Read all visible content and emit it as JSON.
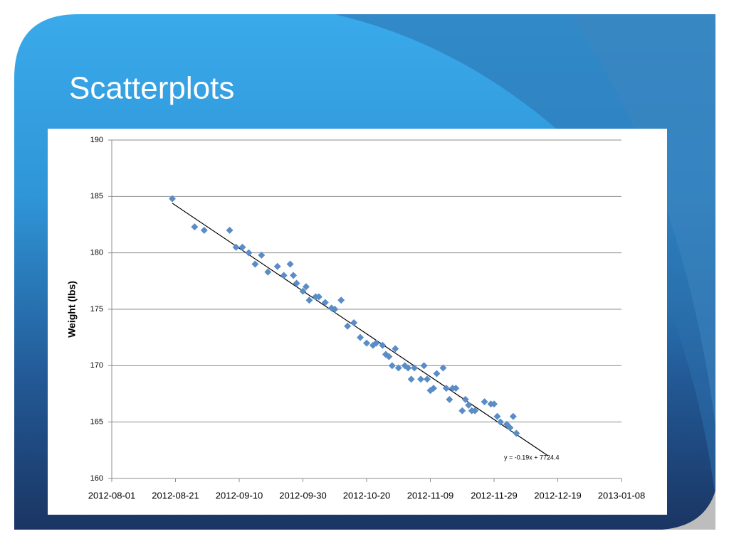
{
  "slide_title": "Scatterplots",
  "chart_data": {
    "type": "scatter",
    "y_label": "Weight (lbs)",
    "annotation": "y = -0.19x + 7724.4",
    "color": "#5a8cc6",
    "x": [
      "2012-08-20",
      "2012-08-27",
      "2012-08-30",
      "2012-09-07",
      "2012-09-09",
      "2012-09-11",
      "2012-09-13",
      "2012-09-15",
      "2012-09-17",
      "2012-09-19",
      "2012-09-22",
      "2012-09-24",
      "2012-09-26",
      "2012-09-27",
      "2012-09-28",
      "2012-09-30",
      "2012-10-01",
      "2012-10-02",
      "2012-10-04",
      "2012-10-05",
      "2012-10-07",
      "2012-10-09",
      "2012-10-10",
      "2012-10-12",
      "2012-10-14",
      "2012-10-16",
      "2012-10-18",
      "2012-10-20",
      "2012-10-22",
      "2012-10-23",
      "2012-10-25",
      "2012-10-26",
      "2012-10-27",
      "2012-10-28",
      "2012-10-29",
      "2012-10-30",
      "2012-11-01",
      "2012-11-02",
      "2012-11-03",
      "2012-11-04",
      "2012-11-06",
      "2012-11-07",
      "2012-11-08",
      "2012-11-09",
      "2012-11-10",
      "2012-11-11",
      "2012-11-13",
      "2012-11-14",
      "2012-11-15",
      "2012-11-16",
      "2012-11-17",
      "2012-11-19",
      "2012-11-20",
      "2012-11-21",
      "2012-11-22",
      "2012-11-23",
      "2012-11-26",
      "2012-11-28",
      "2012-11-29",
      "2012-11-30",
      "2012-12-01",
      "2012-12-03",
      "2012-12-04",
      "2012-12-05",
      "2012-12-06"
    ],
    "values": [
      184.8,
      182.3,
      182.0,
      182.0,
      180.5,
      180.5,
      180.0,
      179.0,
      179.8,
      178.3,
      178.8,
      178.0,
      179.0,
      178.0,
      177.3,
      176.6,
      177.0,
      175.8,
      176.1,
      176.1,
      175.6,
      175.1,
      175.0,
      175.8,
      173.5,
      173.8,
      172.5,
      172.0,
      171.8,
      172.0,
      171.8,
      171.0,
      170.8,
      170.0,
      171.5,
      169.8,
      170.0,
      169.8,
      168.8,
      169.8,
      168.8,
      170.0,
      168.8,
      167.8,
      168.0,
      169.3,
      169.8,
      168.0,
      167.0,
      168.0,
      168.0,
      166.0,
      167.0,
      166.5,
      166.0,
      166.0,
      166.8,
      166.6,
      166.6,
      165.5,
      165.0,
      164.8,
      164.5,
      165.5,
      164.0
    ],
    "trendline": {
      "x": [
        "2012-08-20",
        "2012-12-16"
      ],
      "values": [
        184.4,
        162.0
      ]
    },
    "xlim": [
      "2012-08-01",
      "2013-01-08"
    ],
    "xticks": [
      "2012-08-01",
      "2012-08-21",
      "2012-09-10",
      "2012-09-30",
      "2012-10-20",
      "2012-11-09",
      "2012-11-29",
      "2012-12-19",
      "2013-01-08"
    ],
    "ylim": [
      160,
      190
    ],
    "yticks": [
      160,
      165,
      170,
      175,
      180,
      185,
      190
    ],
    "grid": true
  }
}
